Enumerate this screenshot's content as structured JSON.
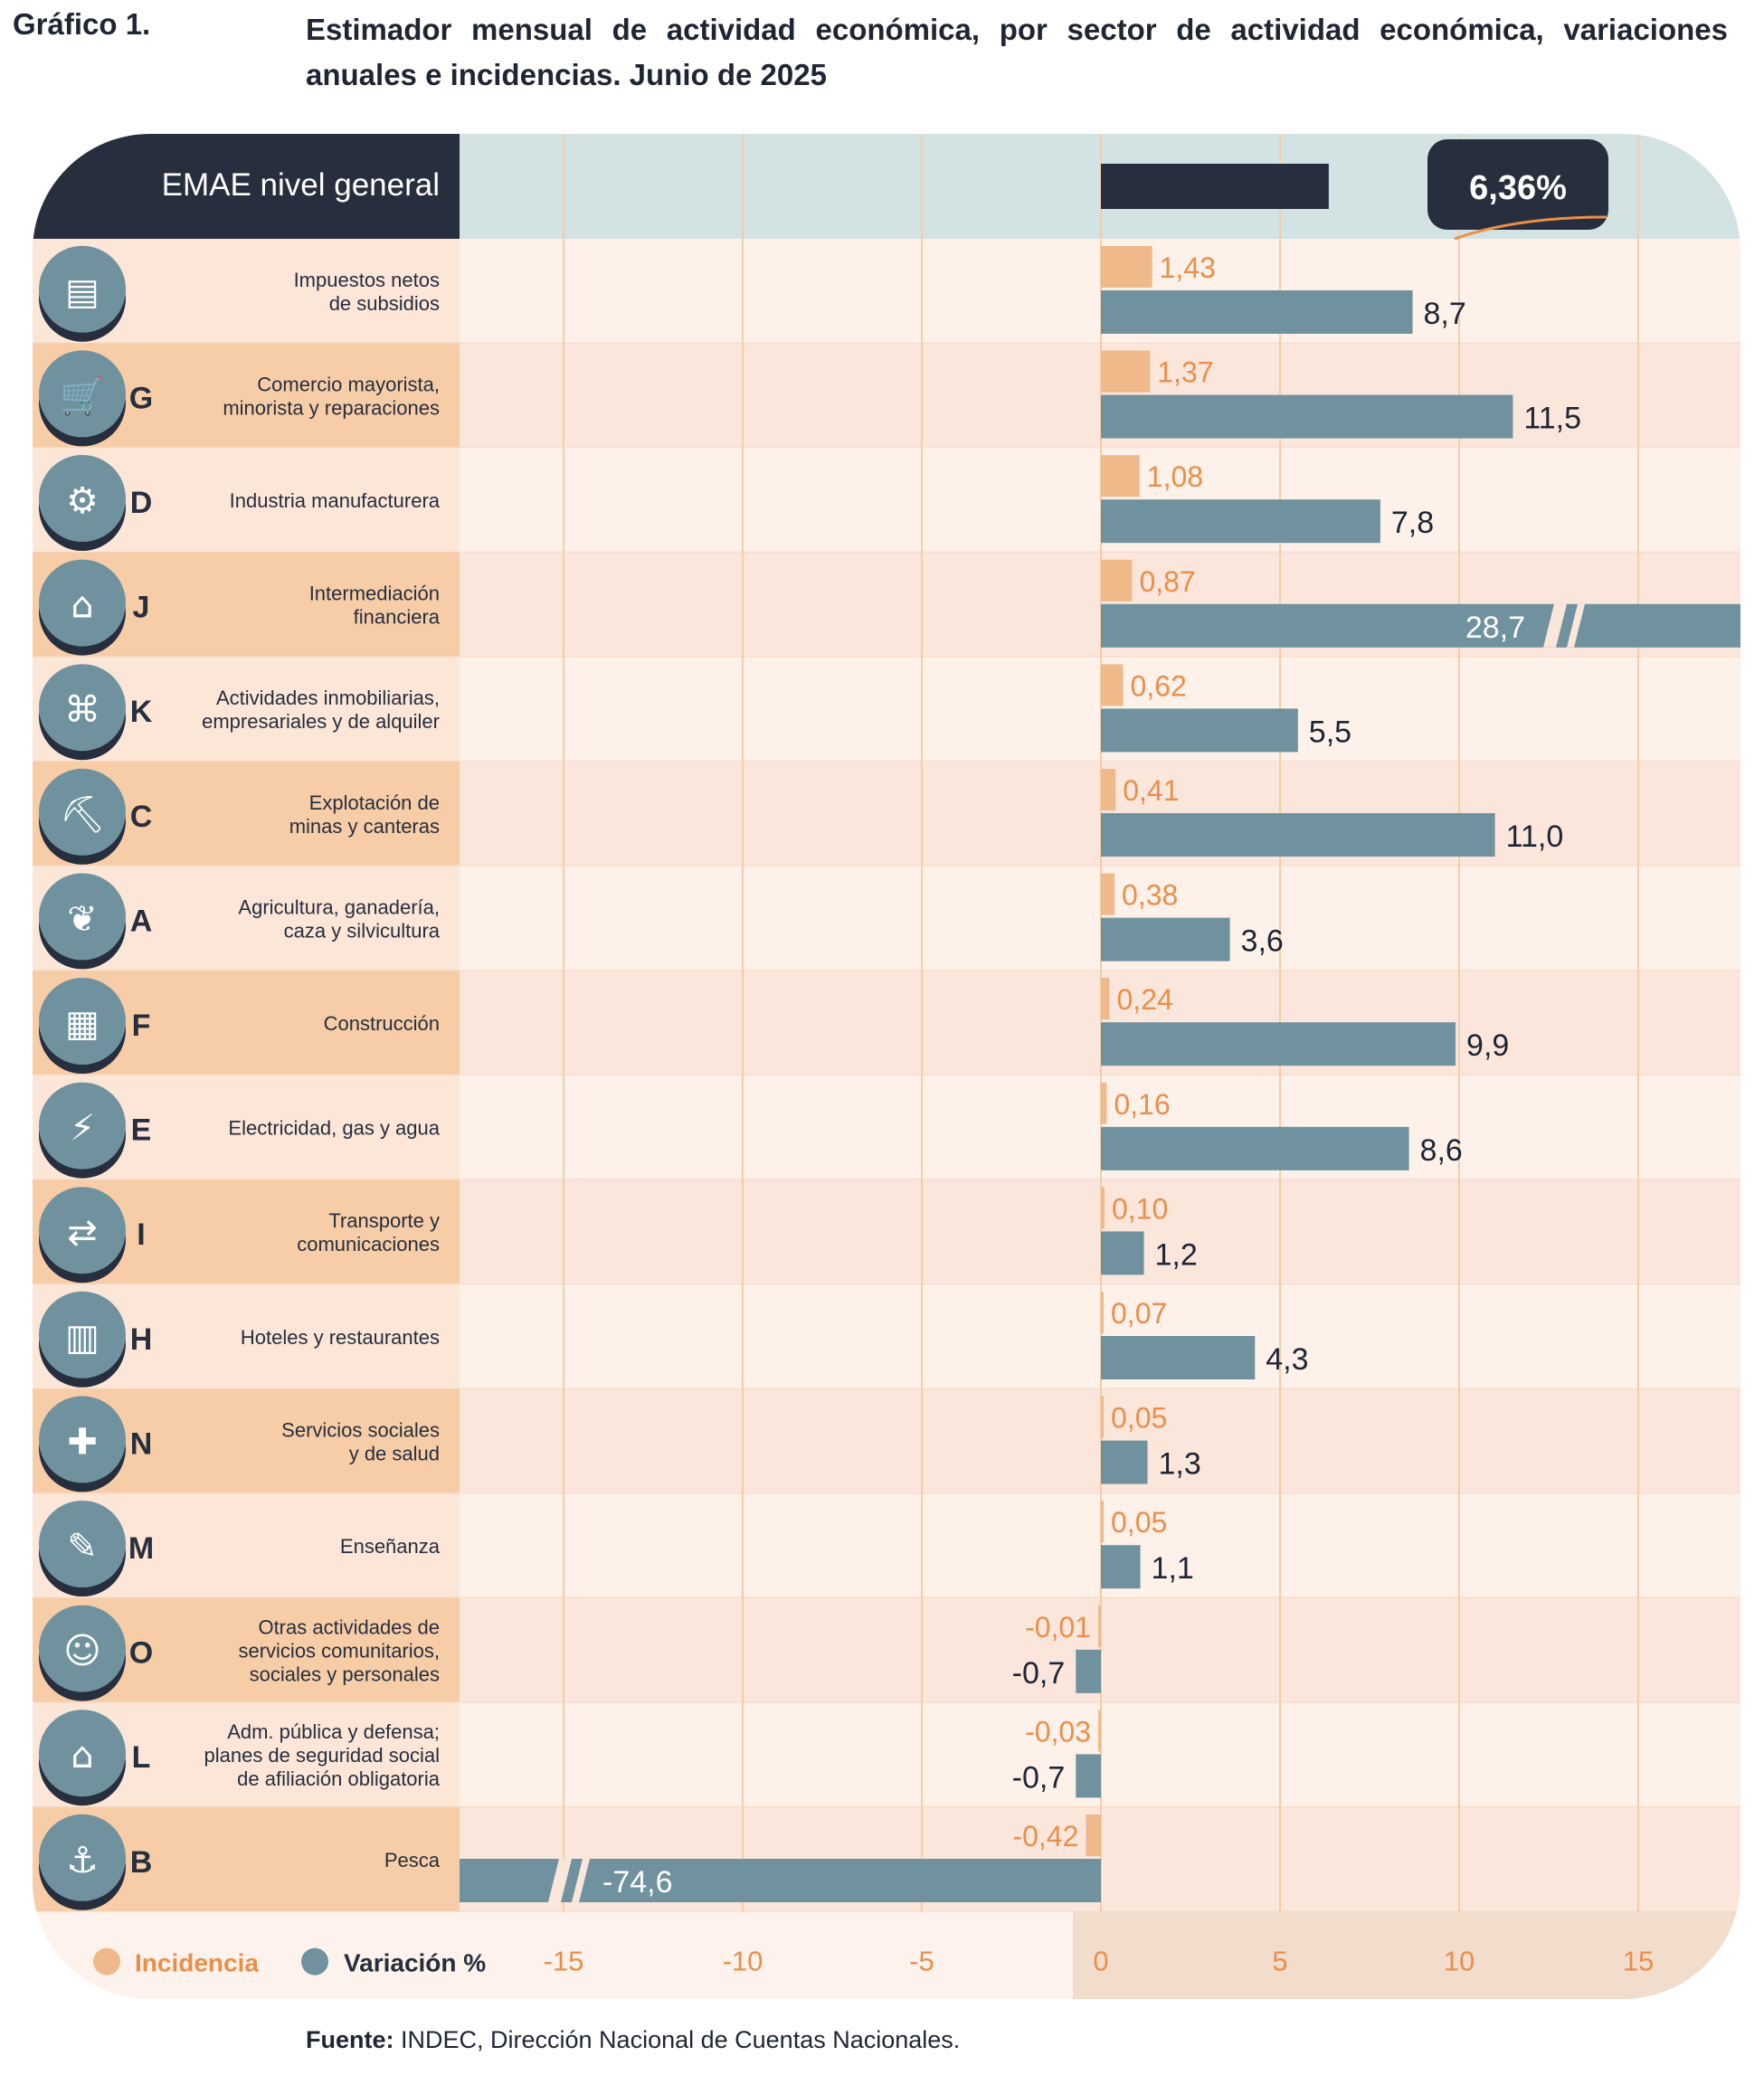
{
  "figure_label": "Gráfico 1.",
  "title": "Estimador mensual de actividad económica, por sector de actividad económica, variaciones anuales e incidencias. Junio de 2025",
  "source": {
    "label": "Fuente:",
    "text": "INDEC, Dirección Nacional de Cuentas Nacionales."
  },
  "colors": {
    "incidence": "#f0b989",
    "variation": "#6f929e",
    "dark": "#272e3d",
    "header_bg": "#d3e2e2",
    "row_light": "#fdf1ea",
    "row_dark": "#fbe6dc",
    "label_light": "#fce6d8",
    "label_dark": "#f6cda7",
    "axis_bg": "#f2dccb",
    "grid": "#f4cda9",
    "axis_text": "#e98f4a"
  },
  "chart_data": {
    "type": "bar",
    "orientation": "horizontal",
    "xlim": [
      -17.5,
      17.5
    ],
    "xticks": [
      -15,
      -10,
      -5,
      0,
      5,
      10,
      15
    ],
    "tick_labels": [
      "-15",
      "-10",
      "-5",
      "0",
      "5",
      "10",
      "15"
    ],
    "grid": true,
    "legend": {
      "position": "bottom-left",
      "items": [
        "Incidencia",
        "Variación %"
      ]
    },
    "general": {
      "label": "EMAE nivel general",
      "value": 6.36,
      "value_label": "6,36%"
    },
    "categories": [
      {
        "code": "",
        "icon": "taxes-icon",
        "name": [
          "Impuestos netos",
          "de subsidios"
        ],
        "incidence": 1.43,
        "incidence_label": "1,43",
        "variation": 8.7,
        "variation_label": "8,7"
      },
      {
        "code": "G",
        "icon": "shopping-cart-icon",
        "name": [
          "Comercio mayorista,",
          "minorista y reparaciones"
        ],
        "incidence": 1.37,
        "incidence_label": "1,37",
        "variation": 11.5,
        "variation_label": "11,5"
      },
      {
        "code": "D",
        "icon": "gears-icon",
        "name": [
          "Industria manufacturera"
        ],
        "incidence": 1.08,
        "incidence_label": "1,08",
        "variation": 7.8,
        "variation_label": "7,8"
      },
      {
        "code": "J",
        "icon": "bank-icon",
        "name": [
          "Intermediación",
          "financiera"
        ],
        "incidence": 0.87,
        "incidence_label": "0,87",
        "variation": 28.7,
        "variation_label": "28,7",
        "broken": true
      },
      {
        "code": "K",
        "icon": "real-estate-icon",
        "name": [
          "Actividades inmobiliarias,",
          "empresariales y de alquiler"
        ],
        "incidence": 0.62,
        "incidence_label": "0,62",
        "variation": 5.5,
        "variation_label": "5,5"
      },
      {
        "code": "C",
        "icon": "oil-pump-icon",
        "name": [
          "Explotación de",
          "minas y canteras"
        ],
        "incidence": 0.41,
        "incidence_label": "0,41",
        "variation": 11.0,
        "variation_label": "11,0"
      },
      {
        "code": "A",
        "icon": "agriculture-icon",
        "name": [
          "Agricultura, ganadería,",
          "caza y silvicultura"
        ],
        "incidence": 0.38,
        "incidence_label": "0,38",
        "variation": 3.6,
        "variation_label": "3,6"
      },
      {
        "code": "F",
        "icon": "construction-truck-icon",
        "name": [
          "Construcción"
        ],
        "incidence": 0.24,
        "incidence_label": "0,24",
        "variation": 9.9,
        "variation_label": "9,9"
      },
      {
        "code": "E",
        "icon": "power-tower-icon",
        "name": [
          "Electricidad, gas y agua"
        ],
        "incidence": 0.16,
        "incidence_label": "0,16",
        "variation": 8.6,
        "variation_label": "8,6"
      },
      {
        "code": "I",
        "icon": "transport-icon",
        "name": [
          "Transporte y",
          "comunicaciones"
        ],
        "incidence": 0.1,
        "incidence_label": "0,10",
        "variation": 1.2,
        "variation_label": "1,2"
      },
      {
        "code": "H",
        "icon": "hotel-icon",
        "name": [
          "Hoteles y restaurantes"
        ],
        "incidence": 0.07,
        "incidence_label": "0,07",
        "variation": 4.3,
        "variation_label": "4,3"
      },
      {
        "code": "N",
        "icon": "health-kit-icon",
        "name": [
          "Servicios sociales",
          "y de salud"
        ],
        "incidence": 0.05,
        "incidence_label": "0,05",
        "variation": 1.3,
        "variation_label": "1,3"
      },
      {
        "code": "M",
        "icon": "education-icon",
        "name": [
          "Enseñanza"
        ],
        "incidence": 0.05,
        "incidence_label": "0,05",
        "variation": 1.1,
        "variation_label": "1,1"
      },
      {
        "code": "O",
        "icon": "community-masks-icon",
        "name": [
          "Otras actividades de",
          "servicios comunitarios,",
          "sociales y personales"
        ],
        "incidence": -0.01,
        "incidence_label": "-0,01",
        "variation": -0.7,
        "variation_label": "-0,7"
      },
      {
        "code": "L",
        "icon": "congress-icon",
        "name": [
          "Adm. pública y defensa;",
          "planes de seguridad social",
          "de afiliación obligatoria"
        ],
        "incidence": -0.03,
        "incidence_label": "-0,03",
        "variation": -0.7,
        "variation_label": "-0,7"
      },
      {
        "code": "B",
        "icon": "fishing-icon",
        "name": [
          "Pesca"
        ],
        "incidence": -0.42,
        "incidence_label": "-0,42",
        "variation": -74.6,
        "variation_label": "-74,6",
        "broken": true
      }
    ]
  }
}
